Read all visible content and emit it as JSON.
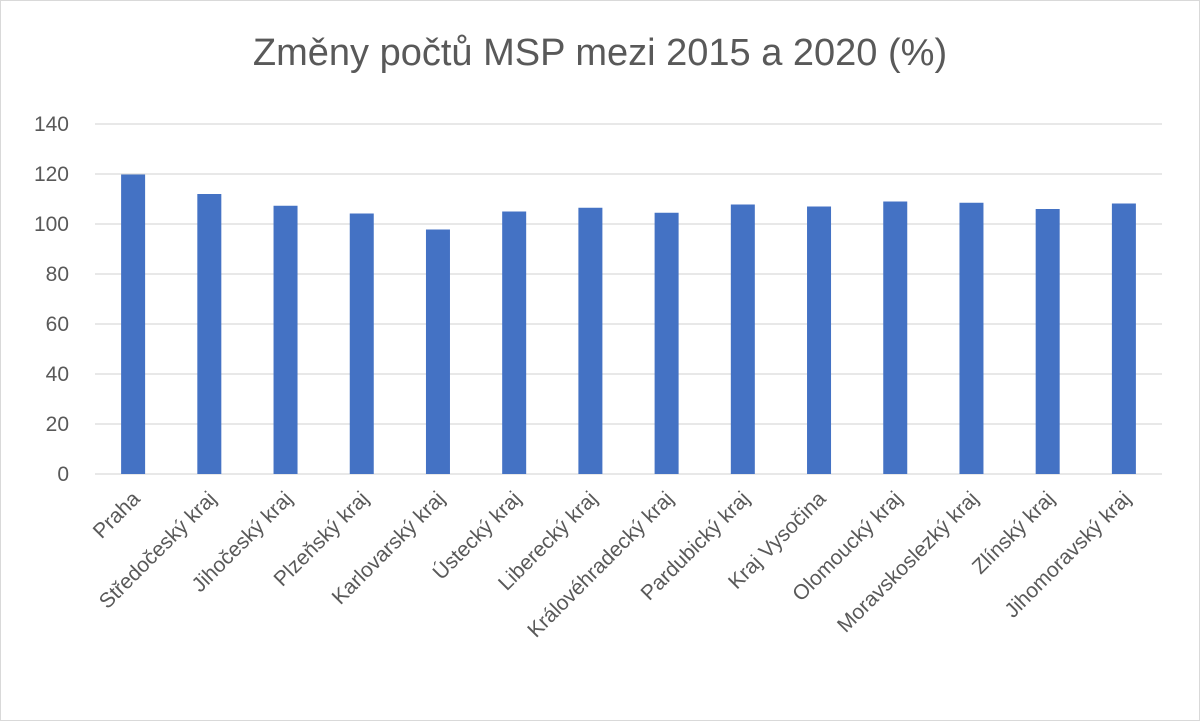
{
  "chart_data": {
    "type": "bar",
    "title": "Změny počtů MSP mezi 2015 a 2020 (%)",
    "xlabel": "",
    "ylabel": "",
    "categories": [
      "Praha",
      "Středočeský kraj",
      "Jihočeský kraj",
      "Plzeňský kraj",
      "Karlovarský kraj",
      "Ústecký kraj",
      "Liberecký kraj",
      "Královéhradecký kraj",
      "Pardubický kraj",
      "Kraj Vysočina",
      "Olomoucký kraj",
      "Moravskoslezký kraj",
      "Zlínský kraj",
      "Jihomoravský kraj"
    ],
    "values": [
      119.8,
      112.0,
      107.3,
      104.2,
      97.8,
      105.0,
      106.5,
      104.5,
      107.8,
      107.0,
      109.0,
      108.5,
      106.0,
      108.2
    ],
    "ylim": [
      0,
      140
    ],
    "yticks": [
      "0",
      "20",
      "40",
      "60",
      "80",
      "100",
      "120",
      "140"
    ],
    "grid": true,
    "legend": "none",
    "bar_color": "#4472C4",
    "grid_color": "#d9d9d9"
  }
}
